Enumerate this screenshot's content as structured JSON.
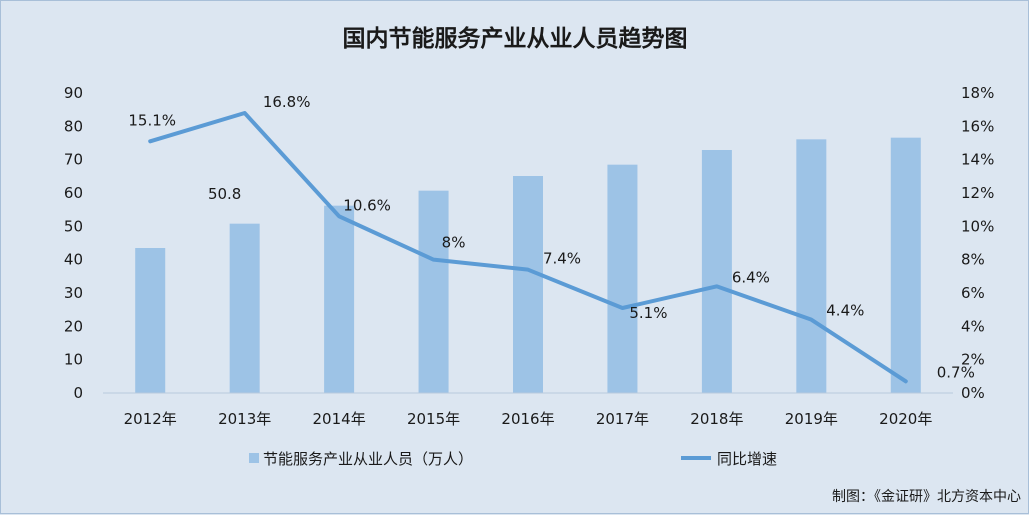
{
  "chart_data": {
    "type": "bar+line",
    "title": "国内节能服务产业从业人员趋势图",
    "categories": [
      "2012年",
      "2013年",
      "2014年",
      "2015年",
      "2016年",
      "2017年",
      "2018年",
      "2019年",
      "2020年"
    ],
    "series": [
      {
        "name": "节能服务产业从业人员（万人）",
        "type": "bar",
        "axis": "left",
        "values": [
          43.5,
          50.8,
          56.2,
          60.7,
          65.1,
          68.5,
          72.9,
          76.1,
          76.6
        ],
        "color": "#9dc3e6"
      },
      {
        "name": "同比增速",
        "type": "line",
        "axis": "right",
        "values": [
          15.1,
          16.8,
          10.6,
          8,
          7.4,
          5.1,
          6.4,
          4.4,
          0.7
        ],
        "color": "#5b9bd5"
      }
    ],
    "bar_data_labels": [
      "",
      "50.8",
      "",
      "",
      "",
      "",
      "",
      "",
      ""
    ],
    "line_data_labels": [
      "15.1%",
      "16.8%",
      "10.6%",
      "8%",
      "7.4%",
      "5.1%",
      "6.4%",
      "4.4%",
      "0.7%"
    ],
    "y_left": {
      "min": 0,
      "max": 90,
      "step": 10,
      "ticks": [
        "0",
        "10",
        "20",
        "30",
        "40",
        "50",
        "60",
        "70",
        "80",
        "90"
      ]
    },
    "y_right": {
      "min": 0,
      "max": 18,
      "step": 2,
      "ticks": [
        "0%",
        "2%",
        "4%",
        "6%",
        "8%",
        "10%",
        "12%",
        "14%",
        "16%",
        "18%"
      ]
    },
    "grid": false,
    "legend_position": "bottom"
  },
  "source": "制图：《金证研》北方资本中心",
  "colors": {
    "background": "#dce6f1",
    "bar": "#9dc3e6",
    "line": "#5b9bd5"
  }
}
